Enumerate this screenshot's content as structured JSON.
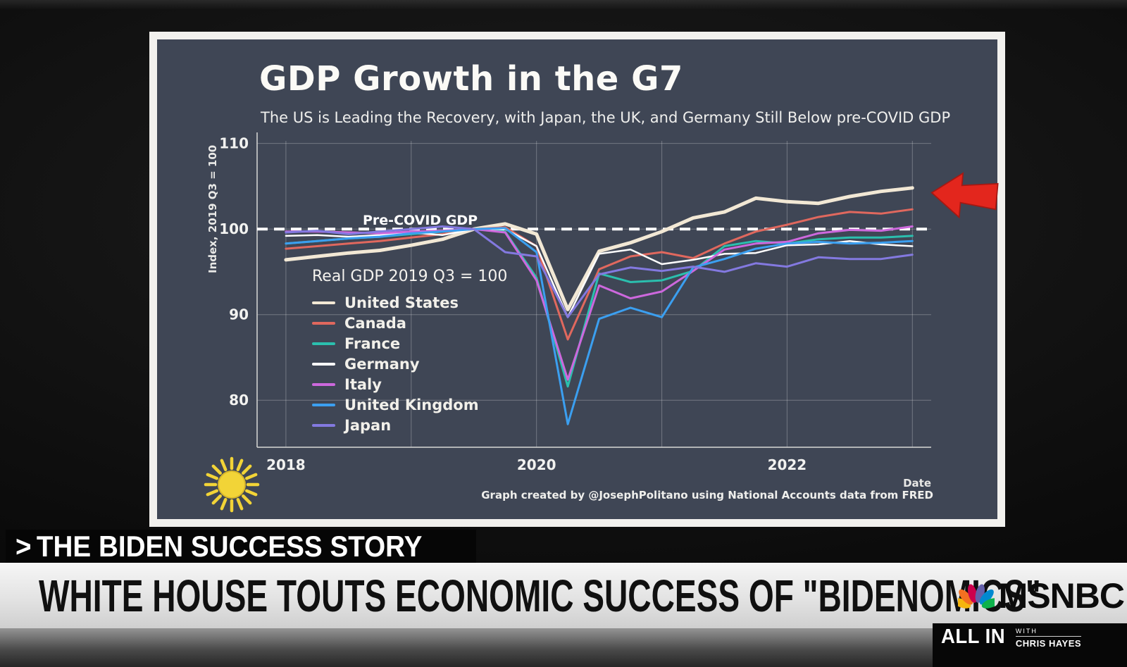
{
  "slide": {
    "title": "GDP Growth in the G7",
    "subtitle": "The US is Leading the Recovery, with Japan, the UK, and Germany Still Below pre-COVID GDP",
    "legend_title": "Real GDP 2019 Q3 = 100",
    "attribution": "Graph created by @JosephPolitano using National Accounts data from FRED"
  },
  "chart_data": {
    "type": "line",
    "title": "GDP Growth in the G7",
    "subtitle": "The US is Leading the Recovery, with Japan, the UK, and Germany Still Below pre-COVID GDP",
    "xlabel": "Date",
    "ylabel": "Index, 2019 Q3 = 100",
    "xlim": [
      2017.77,
      2023.15
    ],
    "ylim": [
      74.5,
      110.3
    ],
    "yticks": [
      80,
      90,
      100,
      110
    ],
    "xticks": [
      2018,
      2020,
      2022
    ],
    "xgrid": [
      2018,
      2019,
      2020,
      2021,
      2022,
      2023
    ],
    "grid": true,
    "legend_position": "inside-left",
    "reference_line": {
      "label": "Pre-COVID GDP",
      "value": 100,
      "style": "dashed-white"
    },
    "x": [
      2018.0,
      2018.25,
      2018.5,
      2018.75,
      2019.0,
      2019.25,
      2019.5,
      2019.75,
      2020.0,
      2020.25,
      2020.5,
      2020.75,
      2021.0,
      2021.25,
      2021.5,
      2021.75,
      2022.0,
      2022.25,
      2022.5,
      2022.75,
      2023.0
    ],
    "series": [
      {
        "name": "United States",
        "color": "#f2e8d5",
        "w": 5,
        "values": [
          96.4,
          96.8,
          97.2,
          97.5,
          98.1,
          98.8,
          100.0,
          100.6,
          99.4,
          90.6,
          97.4,
          98.4,
          99.7,
          101.3,
          102.0,
          103.6,
          103.2,
          103.0,
          103.8,
          104.4,
          104.8
        ]
      },
      {
        "name": "Canada",
        "color": "#e0685e",
        "w": 3,
        "values": [
          97.7,
          98.0,
          98.3,
          98.6,
          99.0,
          99.4,
          100.0,
          100.2,
          98.0,
          87.1,
          95.3,
          96.8,
          97.3,
          96.6,
          98.3,
          99.7,
          100.5,
          101.4,
          102.0,
          101.8,
          102.3
        ]
      },
      {
        "name": "France",
        "color": "#2bbfae",
        "w": 3,
        "values": [
          98.3,
          98.6,
          98.9,
          99.1,
          99.4,
          99.7,
          100.0,
          99.7,
          94.3,
          81.6,
          94.8,
          93.8,
          94.0,
          95.1,
          98.0,
          98.6,
          98.3,
          98.8,
          99.0,
          99.0,
          99.2
        ]
      },
      {
        "name": "Germany",
        "color": "#ffffff",
        "w": 2.5,
        "values": [
          99.2,
          99.3,
          99.1,
          99.3,
          99.6,
          99.3,
          100.0,
          100.0,
          98.0,
          89.7,
          97.1,
          97.6,
          95.9,
          96.4,
          97.1,
          97.2,
          98.1,
          98.2,
          98.6,
          98.2,
          98.0
        ]
      },
      {
        "name": "Italy",
        "color": "#cd68dd",
        "w": 3,
        "values": [
          99.7,
          99.7,
          99.6,
          99.5,
          99.7,
          99.8,
          100.0,
          99.6,
          94.0,
          82.4,
          93.4,
          91.9,
          92.7,
          95.1,
          97.6,
          98.3,
          98.5,
          99.5,
          99.9,
          99.8,
          100.3
        ]
      },
      {
        "name": "United Kingdom",
        "color": "#3b9ff0",
        "w": 3,
        "values": [
          98.3,
          98.6,
          98.9,
          99.1,
          99.5,
          99.7,
          100.0,
          100.1,
          97.3,
          77.2,
          89.5,
          90.8,
          89.7,
          95.5,
          96.5,
          97.7,
          98.3,
          98.5,
          98.3,
          98.4,
          98.6
        ]
      },
      {
        "name": "Japan",
        "color": "#8379e0",
        "w": 3,
        "values": [
          99.6,
          99.8,
          99.4,
          99.7,
          100.0,
          100.3,
          100.0,
          97.3,
          96.8,
          89.7,
          94.7,
          95.5,
          95.1,
          95.6,
          95.0,
          96.0,
          95.6,
          96.7,
          96.5,
          96.5,
          97.0
        ]
      }
    ]
  },
  "ticker": {
    "kicker_prefix": ">",
    "kicker": "THE BIDEN SUCCESS STORY",
    "headline": "WHITE HOUSE TOUTS ECONOMIC SUCCESS OF \"BIDENOMICS\"",
    "network": "MSNBC",
    "show": "ALL IN",
    "show_with": "WITH",
    "show_host": "CHRIS HAYES"
  },
  "colors": {
    "slide_bg": "#3f4655",
    "arrow": "#e3261d",
    "sun": "#f2d437",
    "peacock": [
      "#f5b50f",
      "#f37021",
      "#cc004c",
      "#6460aa",
      "#0089d0",
      "#0db14b"
    ]
  }
}
